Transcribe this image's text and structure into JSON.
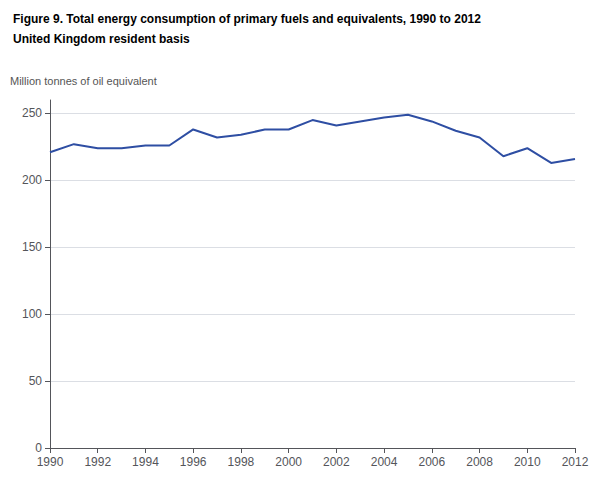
{
  "chart_data": {
    "type": "line",
    "title": "Figure 9. Total energy consumption of primary fuels and equivalents, 1990 to 2012",
    "subtitle": "United Kingdom resident basis",
    "ylabel": "Million tonnes of oil equivalent",
    "x": [
      1990,
      1991,
      1992,
      1993,
      1994,
      1995,
      1996,
      1997,
      1998,
      1999,
      2000,
      2001,
      2002,
      2003,
      2004,
      2005,
      2006,
      2007,
      2008,
      2009,
      2010,
      2011,
      2012
    ],
    "values": [
      221,
      227,
      224,
      224,
      226,
      226,
      238,
      232,
      234,
      238,
      238,
      245,
      241,
      244,
      247,
      249,
      244,
      237,
      232,
      218,
      224,
      213,
      216
    ],
    "color": "#2e4ea3",
    "xlim": [
      1990,
      2012
    ],
    "xticks": [
      1990,
      1992,
      1994,
      1996,
      1998,
      2000,
      2002,
      2004,
      2006,
      2008,
      2010,
      2012
    ],
    "ylim": [
      0,
      260
    ],
    "yticks": [
      0,
      50,
      100,
      150,
      200,
      250
    ],
    "grid": true
  }
}
